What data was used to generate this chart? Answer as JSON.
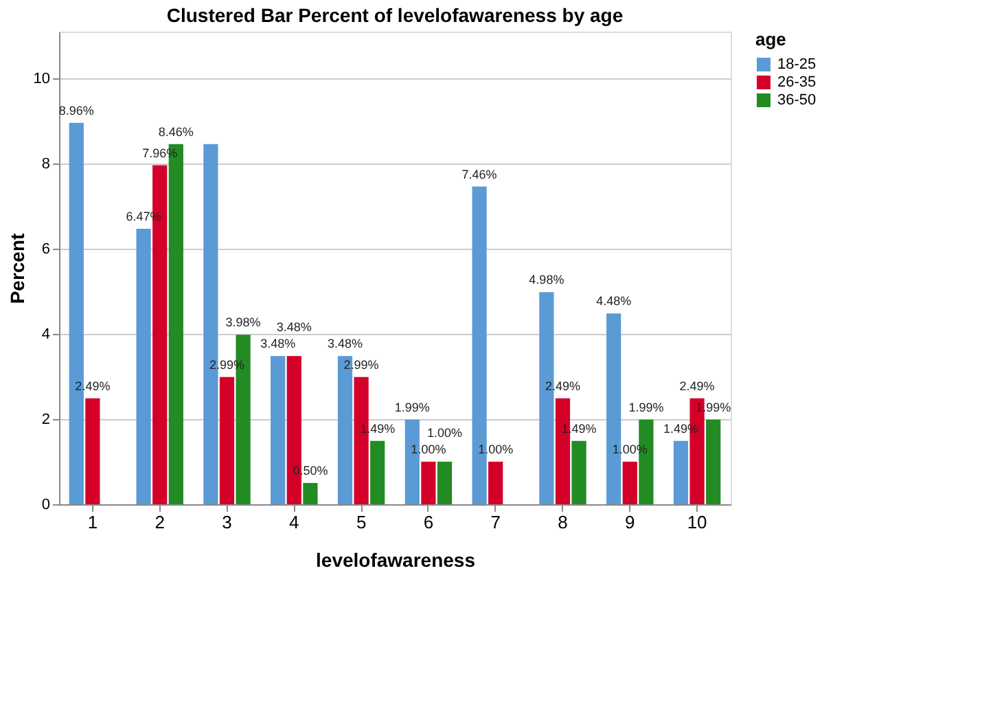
{
  "chart_data": {
    "type": "bar",
    "title": "Clustered Bar Percent of levelofawareness by age",
    "xlabel": "levelofawareness",
    "ylabel": "Percent",
    "legend_title": "age",
    "categories": [
      "1",
      "2",
      "3",
      "4",
      "5",
      "6",
      "7",
      "8",
      "9",
      "10"
    ],
    "series": [
      {
        "name": "18-25",
        "color": "#5b9bd5",
        "values": [
          8.96,
          6.47,
          8.46,
          3.48,
          3.48,
          1.99,
          7.46,
          4.98,
          4.48,
          1.49
        ],
        "value_labels": [
          "8.96%",
          "6.47%",
          null,
          "3.48%",
          "3.48%",
          "1.99%",
          "7.46%",
          "4.98%",
          "4.48%",
          "1.49%"
        ]
      },
      {
        "name": "26-35",
        "color": "#d5002a",
        "values": [
          2.49,
          7.96,
          2.99,
          3.48,
          2.99,
          1.0,
          1.0,
          2.49,
          1.0,
          2.49
        ],
        "value_labels": [
          "2.49%",
          "7.96%",
          "2.99%",
          "3.48%",
          "2.99%",
          "1.00%",
          "1.00%",
          "2.49%",
          "1.00%",
          "2.49%"
        ]
      },
      {
        "name": "36-50",
        "color": "#238b24",
        "values": [
          null,
          8.46,
          3.98,
          0.5,
          1.49,
          1.0,
          null,
          1.49,
          1.99,
          1.99
        ],
        "value_labels": [
          null,
          "8.46%",
          "3.98%",
          "0.50%",
          "1.49%",
          "1.00%",
          null,
          "1.49%",
          "1.99%",
          "1.99%"
        ]
      }
    ],
    "ylim": [
      0,
      11.1
    ],
    "yticks": [
      0,
      2,
      4,
      6,
      8,
      10
    ],
    "grid": "y",
    "legend": "top right"
  }
}
